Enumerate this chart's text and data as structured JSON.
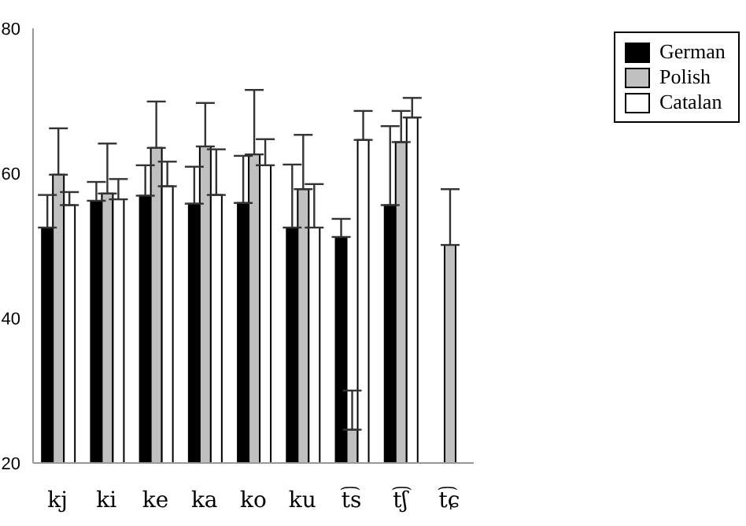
{
  "chart_data": {
    "type": "bar",
    "categories": [
      "kj",
      "ki",
      "ke",
      "ka",
      "ko",
      "ku",
      "t͡s",
      "t͡ʃ",
      "t͡ɕ"
    ],
    "series": [
      {
        "name": "German",
        "color": "#000000",
        "values": [
          52.5,
          56.2,
          56.9,
          55.8,
          55.9,
          52.5,
          51.2,
          55.6,
          null
        ],
        "errors": [
          [
            52.5,
            57.0
          ],
          [
            56.2,
            58.8
          ],
          [
            56.9,
            61.1
          ],
          [
            55.8,
            60.9
          ],
          [
            55.9,
            62.4
          ],
          [
            52.5,
            61.2
          ],
          [
            51.2,
            53.7
          ],
          [
            55.6,
            66.5
          ],
          null
        ]
      },
      {
        "name": "Polish",
        "color": "#c0c0c0",
        "values": [
          59.8,
          57.2,
          63.5,
          63.7,
          62.6,
          57.8,
          24.6,
          64.3,
          50.1
        ],
        "errors": [
          [
            59.8,
            66.2
          ],
          [
            57.2,
            64.1
          ],
          [
            63.5,
            69.9
          ],
          [
            63.7,
            69.7
          ],
          [
            62.6,
            71.5
          ],
          [
            57.8,
            65.3
          ],
          [
            24.6,
            30.0
          ],
          [
            64.3,
            68.6
          ],
          [
            50.1,
            57.8
          ]
        ]
      },
      {
        "name": "Catalan",
        "color": "#ffffff",
        "values": [
          55.6,
          56.4,
          58.2,
          57.0,
          61.1,
          52.5,
          64.6,
          67.7,
          null
        ],
        "errors": [
          [
            55.6,
            57.4
          ],
          [
            56.4,
            59.2
          ],
          [
            58.2,
            61.6
          ],
          [
            57.0,
            63.3
          ],
          [
            61.1,
            64.7
          ],
          [
            52.5,
            58.5
          ],
          [
            64.6,
            68.6
          ],
          [
            67.7,
            70.4
          ],
          null
        ]
      }
    ],
    "ylim": [
      20,
      80
    ],
    "yticks": [
      20,
      40,
      60,
      80
    ],
    "grid": false,
    "legend": "top right"
  }
}
